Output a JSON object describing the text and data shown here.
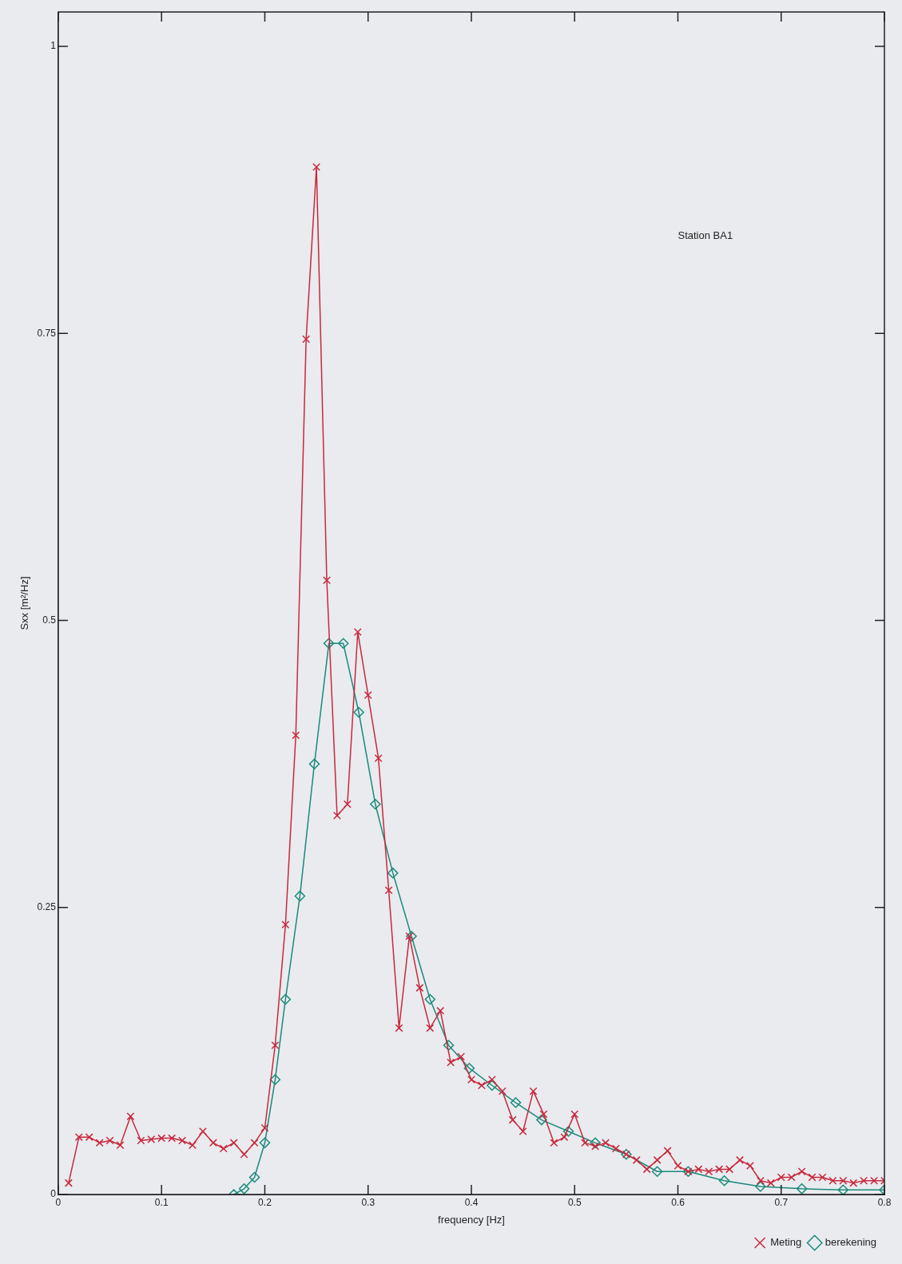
{
  "chart_data": {
    "type": "line",
    "xlabel": "frequency [Hz]",
    "ylabel": "Sxx [m²/Hz]",
    "annotations": [
      "Station BA1"
    ],
    "xlim": [
      0,
      0.8
    ],
    "xticks": [
      0,
      0.1,
      0.2,
      0.3,
      0.4,
      0.5,
      0.6,
      0.7,
      0.8
    ],
    "ylim": [
      0,
      1.03
    ],
    "yticks": [
      0,
      0.25,
      0.5,
      0.75,
      1
    ],
    "grid": false,
    "legend": "bottom right",
    "line_style": "solid",
    "series": [
      {
        "name": "Meting",
        "color": "#c8283c",
        "marker": "cross",
        "x": [
          0.01,
          0.02,
          0.03,
          0.04,
          0.05,
          0.06,
          0.07,
          0.08,
          0.09,
          0.1,
          0.11,
          0.12,
          0.13,
          0.14,
          0.15,
          0.16,
          0.17,
          0.18,
          0.19,
          0.2,
          0.21,
          0.22,
          0.23,
          0.24,
          0.25,
          0.26,
          0.27,
          0.28,
          0.29,
          0.3,
          0.31,
          0.32,
          0.33,
          0.34,
          0.35,
          0.36,
          0.37,
          0.38,
          0.39,
          0.4,
          0.41,
          0.42,
          0.43,
          0.44,
          0.45,
          0.46,
          0.47,
          0.48,
          0.49,
          0.5,
          0.51,
          0.52,
          0.53,
          0.54,
          0.55,
          0.56,
          0.57,
          0.58,
          0.59,
          0.6,
          0.61,
          0.62,
          0.63,
          0.64,
          0.65,
          0.66,
          0.67,
          0.68,
          0.69,
          0.7,
          0.71,
          0.72,
          0.73,
          0.74,
          0.75,
          0.76,
          0.77,
          0.78,
          0.79,
          0.8
        ],
        "values": [
          0.01,
          0.05,
          0.05,
          0.045,
          0.047,
          0.043,
          0.068,
          0.047,
          0.048,
          0.049,
          0.049,
          0.047,
          0.043,
          0.055,
          0.045,
          0.04,
          0.045,
          0.035,
          0.045,
          0.058,
          0.13,
          0.235,
          0.4,
          0.745,
          0.895,
          0.535,
          0.33,
          0.34,
          0.49,
          0.435,
          0.38,
          0.265,
          0.145,
          0.225,
          0.18,
          0.145,
          0.16,
          0.115,
          0.12,
          0.1,
          0.095,
          0.1,
          0.09,
          0.065,
          0.055,
          0.09,
          0.07,
          0.045,
          0.05,
          0.07,
          0.045,
          0.042,
          0.045,
          0.04,
          0.035,
          0.03,
          0.022,
          0.03,
          0.038,
          0.025,
          0.02,
          0.022,
          0.02,
          0.022,
          0.022,
          0.03,
          0.025,
          0.012,
          0.01,
          0.015,
          0.015,
          0.02,
          0.015,
          0.015,
          0.012,
          0.012,
          0.01,
          0.012,
          0.012,
          0.012
        ]
      },
      {
        "name": "berekening",
        "color": "#1a8a7a",
        "marker": "diamond",
        "x": [
          0.17,
          0.18,
          0.19,
          0.2,
          0.21,
          0.22,
          0.234,
          0.248,
          0.262,
          0.276,
          0.291,
          0.307,
          0.324,
          0.342,
          0.36,
          0.378,
          0.398,
          0.42,
          0.443,
          0.468,
          0.494,
          0.52,
          0.55,
          0.58,
          0.61,
          0.645,
          0.68,
          0.72,
          0.76,
          0.8
        ],
        "values": [
          0,
          0.005,
          0.015,
          0.045,
          0.1,
          0.17,
          0.26,
          0.375,
          0.48,
          0.48,
          0.42,
          0.34,
          0.28,
          0.225,
          0.17,
          0.13,
          0.11,
          0.095,
          0.08,
          0.065,
          0.055,
          0.045,
          0.035,
          0.02,
          0.02,
          0.012,
          0.007,
          0.005,
          0.004,
          0.004
        ]
      }
    ]
  }
}
